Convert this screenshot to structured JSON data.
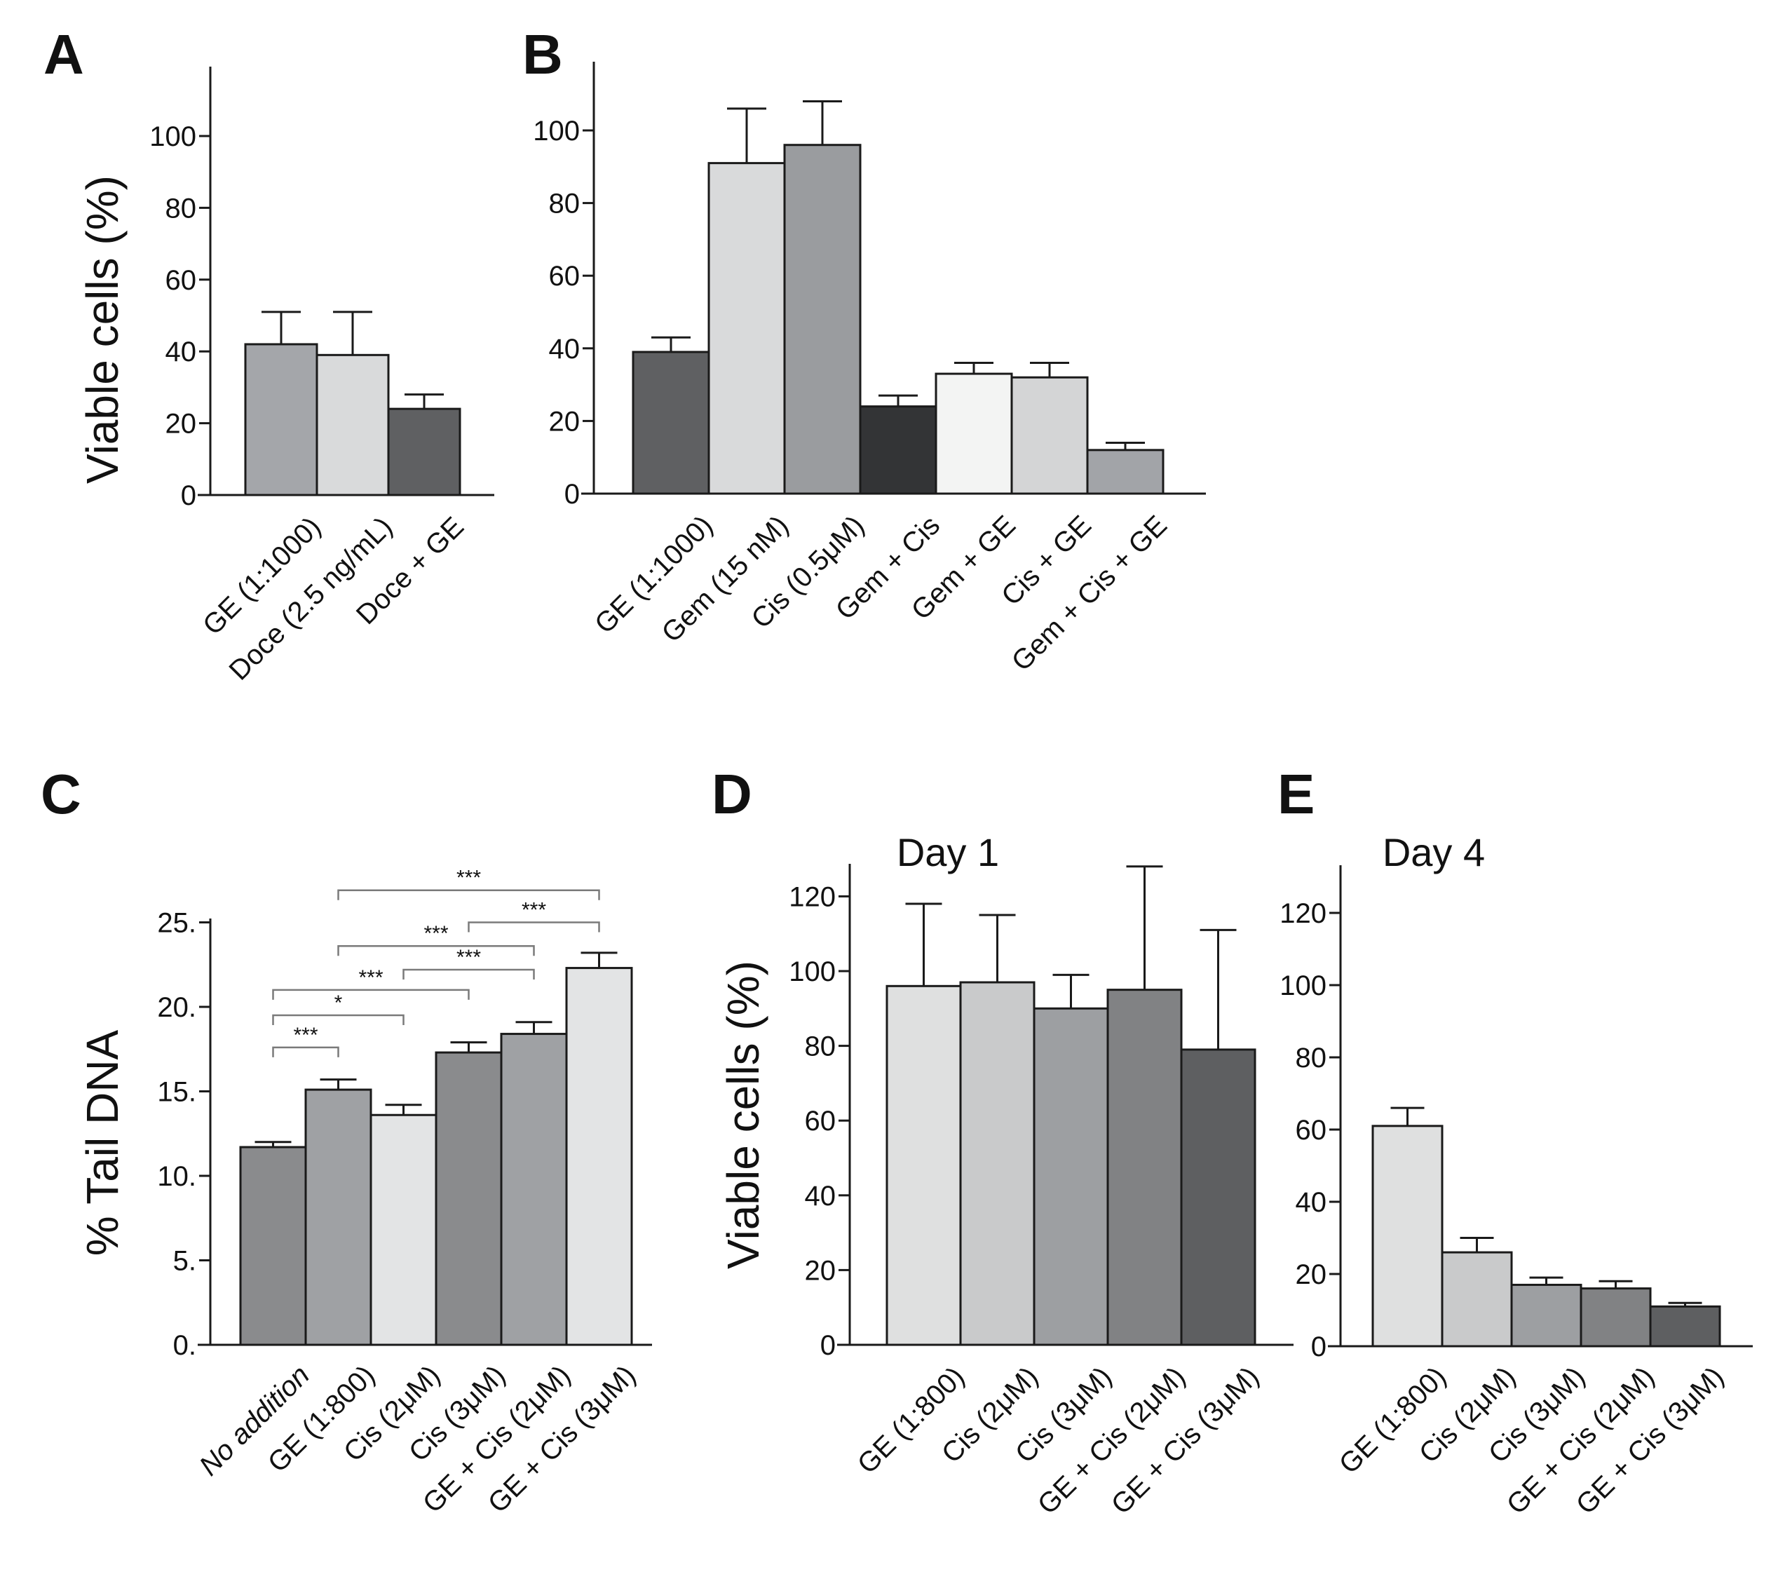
{
  "chart_data": [
    {
      "panel": "A",
      "type": "bar",
      "ylabel": "Viable cells (%)",
      "ylim": [
        0,
        118
      ],
      "yticks": [
        0,
        20,
        40,
        60,
        80,
        100
      ],
      "categories": [
        "GE (1:1000)",
        "Doce (2.5 ng/mL)",
        "Doce + GE"
      ],
      "values": [
        42,
        39,
        24
      ],
      "errors": [
        9,
        12,
        4
      ],
      "colors": [
        "#a4a6aa",
        "#d9dadb",
        "#5f6062"
      ]
    },
    {
      "panel": "B",
      "type": "bar",
      "ylabel": "",
      "ylim": [
        0,
        119
      ],
      "yticks": [
        0,
        20,
        40,
        60,
        80,
        100
      ],
      "categories": [
        "GE (1:1000)",
        "Gem (15 nM)",
        "Cis (0.5μM)",
        "Gem + Cis",
        "Gem + GE",
        "Cis + GE",
        "Gem + Cis + GE"
      ],
      "values": [
        39,
        91,
        96,
        24,
        33,
        32,
        12
      ],
      "errors": [
        4,
        15,
        12,
        3,
        3,
        4,
        2
      ],
      "colors": [
        "#5f6062",
        "#d9dadb",
        "#9a9c9f",
        "#333436",
        "#f3f4f3",
        "#d4d5d6",
        "#a2a4a8"
      ]
    },
    {
      "panel": "C",
      "type": "bar",
      "ylabel": "% Tail DNA",
      "ylim": [
        0,
        25
      ],
      "yticks": [
        0,
        5,
        10,
        15,
        20,
        25
      ],
      "tick_format": "dot",
      "categories": [
        "No addition",
        "GE (1:800)",
        "Cis (2μM)",
        "Cis (3μM)",
        "GE + Cis (2μM)",
        "GE + Cis (3μM)"
      ],
      "values": [
        11.7,
        15.1,
        13.6,
        17.3,
        18.4,
        22.3
      ],
      "errors": [
        0.3,
        0.6,
        0.6,
        0.6,
        0.7,
        0.9
      ],
      "colors": [
        "#8a8b8d",
        "#9fa1a4",
        "#e3e4e5",
        "#8a8b8d",
        "#9fa1a4",
        "#e3e4e5"
      ],
      "significance": [
        {
          "from": 0,
          "to": 1,
          "label": "***",
          "level": 17.6
        },
        {
          "from": 0,
          "to": 2,
          "label": "*",
          "level": 19.5
        },
        {
          "from": 0,
          "to": 3,
          "label": "***",
          "level": 21.0
        },
        {
          "from": 2,
          "to": 4,
          "label": "***",
          "level": 22.2
        },
        {
          "from": 1,
          "to": 4,
          "label": "***",
          "level": 23.6
        },
        {
          "from": 3,
          "to": 5,
          "label": "***",
          "level": 25.0
        },
        {
          "from": 1,
          "to": 5,
          "label": "***",
          "level": 26.9
        }
      ]
    },
    {
      "panel": "D",
      "type": "bar",
      "title": "Day 1",
      "ylabel": "Viable cells (%)",
      "ylim": [
        0,
        128
      ],
      "yticks": [
        0,
        20,
        40,
        60,
        80,
        100,
        120
      ],
      "categories": [
        "GE (1:800)",
        "Cis (2μM)",
        "Cis (3μM)",
        "GE + Cis (2μM)",
        "GE + Cis (3μM)"
      ],
      "values": [
        96,
        97,
        90,
        95,
        79
      ],
      "errors": [
        22,
        18,
        9,
        33,
        32
      ],
      "colors": [
        "#dfe0e0",
        "#c9cacb",
        "#9d9fa2",
        "#818284",
        "#5e5f61"
      ]
    },
    {
      "panel": "E",
      "type": "bar",
      "title": "Day 4",
      "ylabel": "",
      "ylim": [
        0,
        129
      ],
      "yticks": [
        0,
        20,
        40,
        60,
        80,
        100,
        120
      ],
      "categories": [
        "GE (1:800)",
        "Cis (2μM)",
        "Cis (3μM)",
        "GE + Cis (2μM)",
        "GE + Cis (3μM)"
      ],
      "values": [
        61,
        26,
        17,
        16,
        11
      ],
      "errors": [
        5,
        4,
        2,
        2,
        1
      ],
      "colors": [
        "#dfe0e0",
        "#c9cacb",
        "#9d9fa2",
        "#818284",
        "#5e5f61"
      ]
    }
  ]
}
